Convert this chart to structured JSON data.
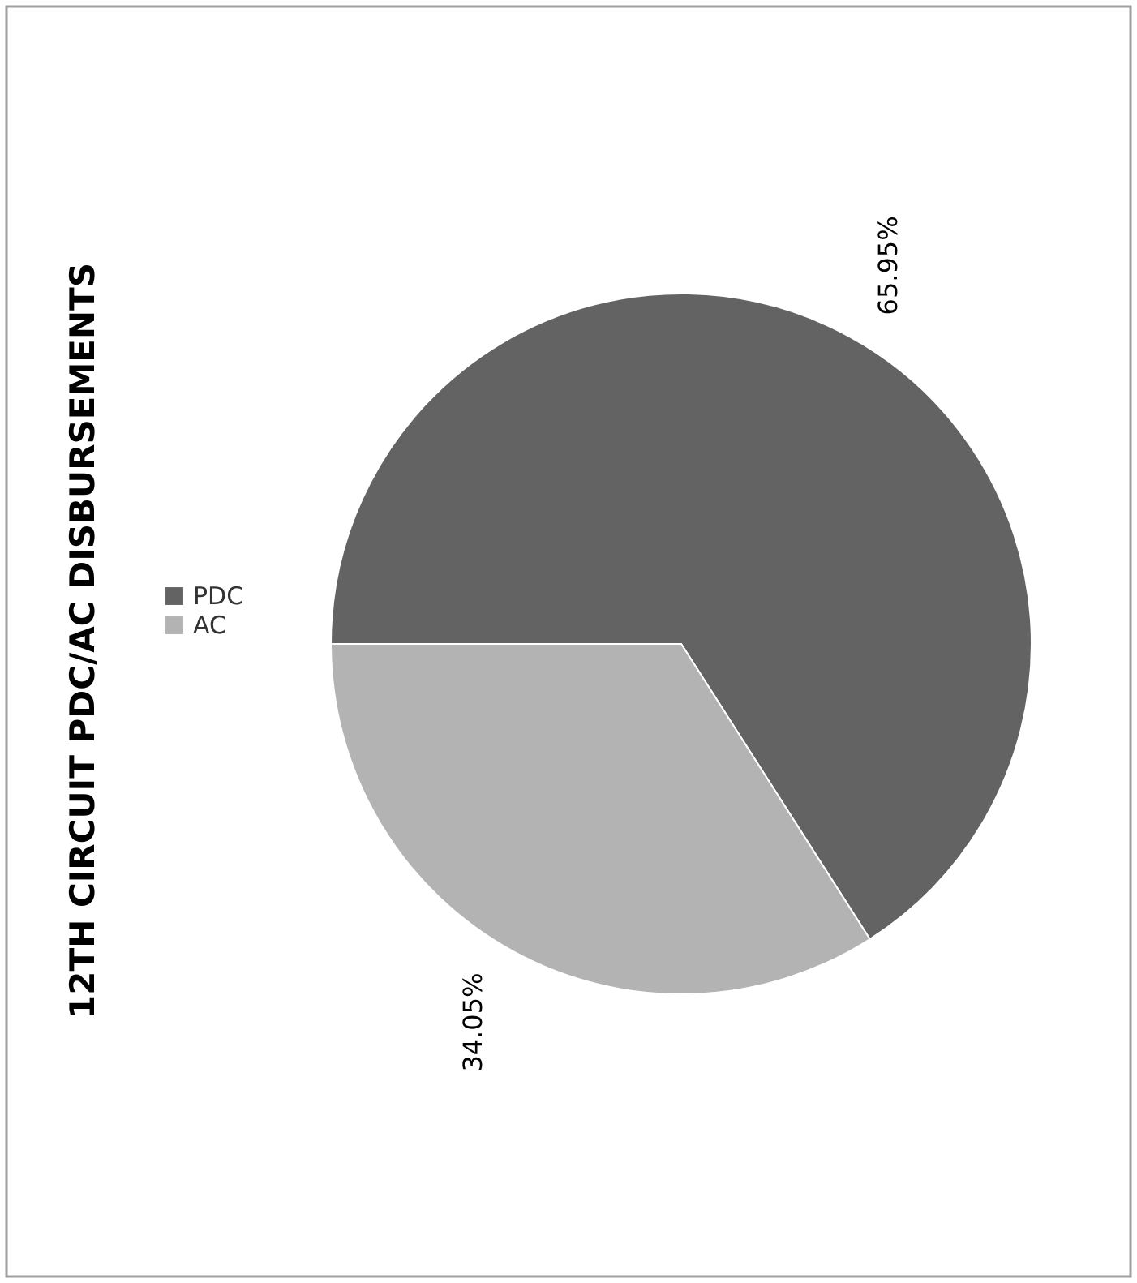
{
  "chart_data": {
    "type": "pie",
    "title": "12TH CIRCUIT PDC/AC DISBURSEMENTS",
    "categories": [
      "PDC",
      "AC"
    ],
    "values": [
      65.95,
      34.05
    ],
    "colors": [
      "#636363",
      "#b3b3b3"
    ],
    "value_labels": [
      "65.95%",
      "34.05%"
    ],
    "legend": "left"
  }
}
